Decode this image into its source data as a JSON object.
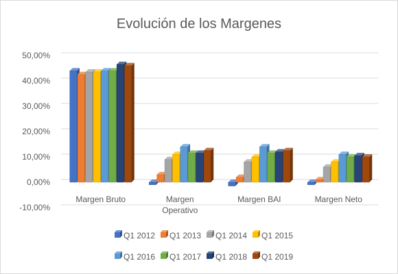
{
  "chart_data": {
    "type": "bar",
    "title": "Evolución de los Margenes",
    "xlabel": "",
    "ylabel": "",
    "ylim": [
      -0.1,
      0.5
    ],
    "yticks": [
      -0.1,
      0,
      0.1,
      0.2,
      0.3,
      0.4,
      0.5
    ],
    "ytick_labels": [
      "-10,00%",
      "0,00%",
      "10,00%",
      "20,00%",
      "30,00%",
      "40,00%",
      "50,00%"
    ],
    "grid": true,
    "style": "3d-clustered-column",
    "legend_position": "bottom",
    "categories": [
      "Margen Bruto",
      "Margen Operativo",
      "Margen BAI",
      "Margen Neto"
    ],
    "series": [
      {
        "name": "Q1 2012",
        "color": "#4472c4",
        "values": [
          0.44,
          -0.01,
          -0.015,
          -0.01
        ]
      },
      {
        "name": "Q1 2013",
        "color": "#ed7d31",
        "values": [
          0.425,
          0.03,
          0.02,
          0.01
        ]
      },
      {
        "name": "Q1 2014",
        "color": "#a5a5a5",
        "values": [
          0.435,
          0.09,
          0.08,
          0.06
        ]
      },
      {
        "name": "Q1 2015",
        "color": "#ffc000",
        "values": [
          0.435,
          0.11,
          0.1,
          0.08
        ]
      },
      {
        "name": "Q1 2016",
        "color": "#5b9bd5",
        "values": [
          0.44,
          0.14,
          0.14,
          0.11
        ]
      },
      {
        "name": "Q1 2017",
        "color": "#70ad47",
        "values": [
          0.44,
          0.115,
          0.115,
          0.1
        ]
      },
      {
        "name": "Q1 2018",
        "color": "#264478",
        "values": [
          0.465,
          0.115,
          0.12,
          0.105
        ]
      },
      {
        "name": "Q1 2019",
        "color": "#9e480e",
        "values": [
          0.46,
          0.125,
          0.125,
          0.1
        ]
      }
    ]
  }
}
